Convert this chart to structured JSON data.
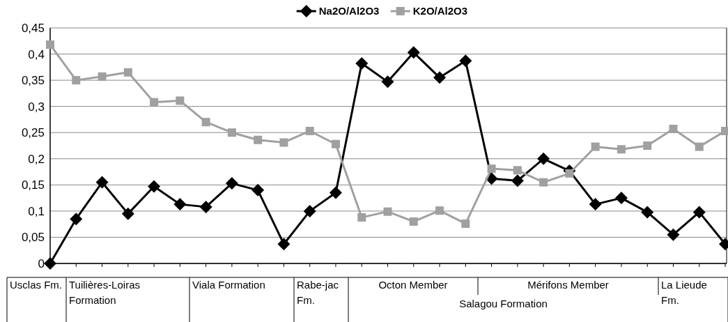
{
  "chart_data": {
    "type": "line",
    "categories": [
      null,
      null,
      null,
      null,
      null,
      null,
      null,
      null,
      null,
      null,
      null,
      null,
      null,
      null,
      null,
      null,
      null,
      null,
      null,
      null,
      null,
      null,
      null,
      null,
      null,
      null,
      null
    ],
    "series": [
      {
        "name": "Na2O/Al2O3",
        "color": "#000000",
        "marker": "diamond",
        "values": [
          0,
          0.085,
          0.155,
          0.095,
          0.147,
          0.113,
          0.108,
          0.153,
          0.14,
          0.037,
          0.1,
          0.135,
          0.382,
          0.347,
          0.403,
          0.355,
          0.387,
          0.162,
          0.158,
          0.2,
          0.177,
          0.113,
          0.125,
          0.098,
          0.055,
          0.098,
          0.037
        ]
      },
      {
        "name": "K2O/Al2O3",
        "color": "#a0a0a0",
        "marker": "square",
        "values": [
          0.418,
          0.35,
          0.357,
          0.365,
          0.308,
          0.311,
          0.27,
          0.25,
          0.236,
          0.231,
          0.253,
          0.228,
          0.088,
          0.099,
          0.08,
          0.101,
          0.076,
          0.181,
          0.178,
          0.155,
          0.172,
          0.223,
          0.218,
          0.225,
          0.257,
          0.223,
          0.253
        ]
      }
    ],
    "ylim": [
      0,
      0.45
    ],
    "yticks": [
      {
        "value": 0,
        "label": "0"
      },
      {
        "value": 0.05,
        "label": "0,05"
      },
      {
        "value": 0.1,
        "label": "0,1"
      },
      {
        "value": 0.15,
        "label": "0,15"
      },
      {
        "value": 0.2,
        "label": "0,2"
      },
      {
        "value": 0.25,
        "label": "0,25"
      },
      {
        "value": 0.3,
        "label": "0,3"
      },
      {
        "value": 0.35,
        "label": "0,35"
      },
      {
        "value": 0.4,
        "label": "0,4"
      },
      {
        "value": 0.45,
        "label": "0,45"
      }
    ],
    "grid": "y",
    "legend": "top",
    "annotations": [
      "Usclas Fm.",
      "Tuilières-Loiras Formation",
      "Viala Formation",
      "Rabe-jac Fm.",
      "Octon Member",
      "Mérifons Member",
      "La Lieude Fm.",
      "Salagou Formation"
    ]
  }
}
